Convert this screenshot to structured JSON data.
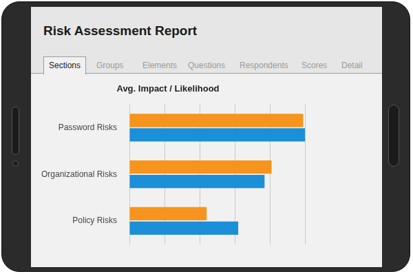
{
  "header": {
    "title": "Risk Assessment Report",
    "tabs": [
      "Sections",
      "Groups",
      "Elements",
      "Questions",
      "Respondents",
      "Scores",
      "Detail"
    ],
    "active_tab": "Sections"
  },
  "chart_data": {
    "type": "bar",
    "title": "Avg. Impact / Likelihood",
    "orientation": "horizontal",
    "categories": [
      "Password Risks",
      "Organizational Risks",
      "Policy Risks"
    ],
    "series": [
      {
        "color": "#f7941d",
        "values": [
          4.95,
          4.05,
          2.2
        ]
      },
      {
        "color": "#1b8fd8",
        "values": [
          5.0,
          3.85,
          3.1
        ]
      }
    ],
    "xlim": [
      0,
      5
    ],
    "xticks": [
      0,
      1,
      2,
      3,
      4,
      5
    ],
    "grid": true,
    "tick_labels": "y"
  }
}
